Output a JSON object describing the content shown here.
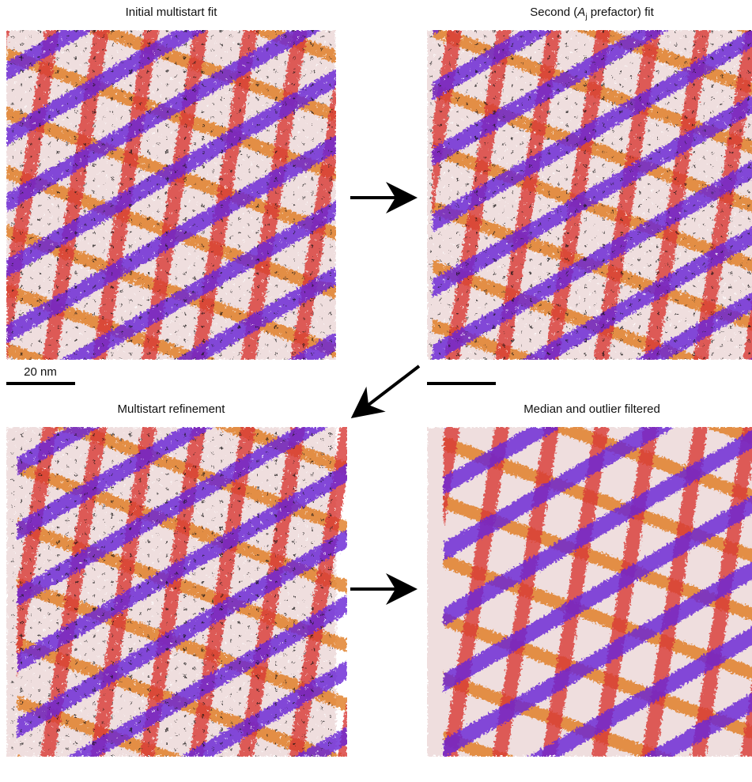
{
  "panels": [
    {
      "title": {
        "text": "Initial multistart fit"
      }
    },
    {
      "title": {
        "before": "Second (",
        "symbol": "A",
        "subscript": "j",
        "after": " prefactor) fit"
      }
    },
    {
      "title": {
        "text": "Multistart refinement"
      }
    },
    {
      "title": {
        "text": "Median and outlier filtered"
      }
    }
  ],
  "scale_bar": {
    "label": "20 nm"
  }
}
